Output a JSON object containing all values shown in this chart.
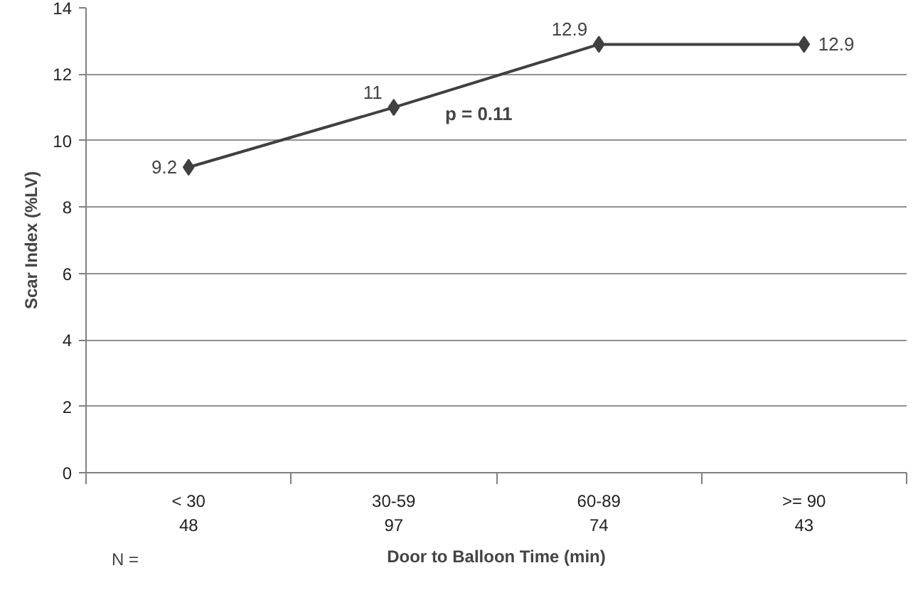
{
  "chart_data": {
    "type": "line",
    "xlabel": "Door to Balloon Time (min)",
    "ylabel": "Scar Index (%LV)",
    "categories": [
      "< 30\n48",
      "30-59\n97",
      "60-89\n74",
      ">= 90\n43"
    ],
    "series": [
      {
        "color": "#404040",
        "values": [
          9.2,
          11,
          12.9,
          12.9
        ]
      }
    ],
    "ylim": [
      0,
      14
    ],
    "yticks": [
      0,
      2,
      4,
      6,
      8,
      10,
      12,
      14
    ],
    "grid": "y",
    "marker": "diamond",
    "line_style": "solid",
    "data_labels": true,
    "annotations": [
      "p = 0.11",
      "N ="
    ]
  }
}
